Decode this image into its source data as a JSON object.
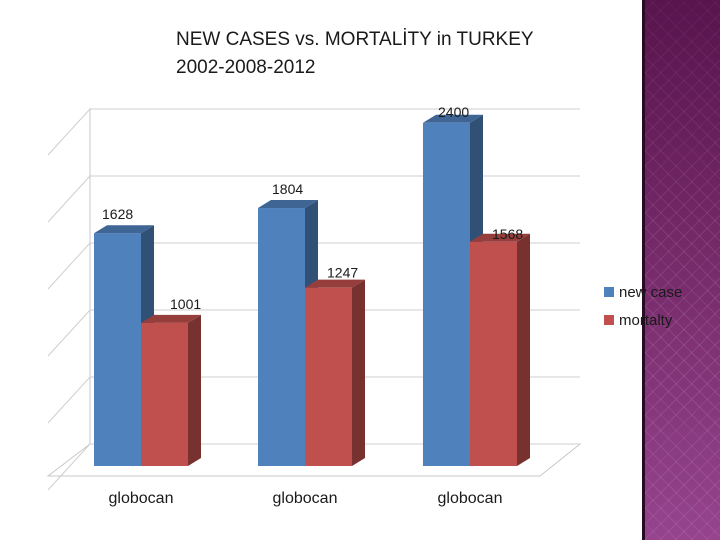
{
  "slide": {
    "title_line1": "NEW CASES vs. MORTALİTY in TURKEY",
    "title_line2": "2002-2008-2012"
  },
  "colors": {
    "new_case": "#4f81bd",
    "mortality": "#c0504d",
    "deco_strip": "#7a2d6e"
  },
  "chart_data": {
    "type": "bar",
    "categories": [
      "globocan",
      "globocan",
      "globocan"
    ],
    "series": [
      {
        "name": "new case",
        "values": [
          1628,
          1804,
          2400
        ]
      },
      {
        "name": "mortalty",
        "values": [
          1001,
          1247,
          1568
        ]
      }
    ],
    "ylim": [
      0,
      2500
    ],
    "grid": true,
    "legend": "right",
    "style": "3d-clustered-column"
  }
}
